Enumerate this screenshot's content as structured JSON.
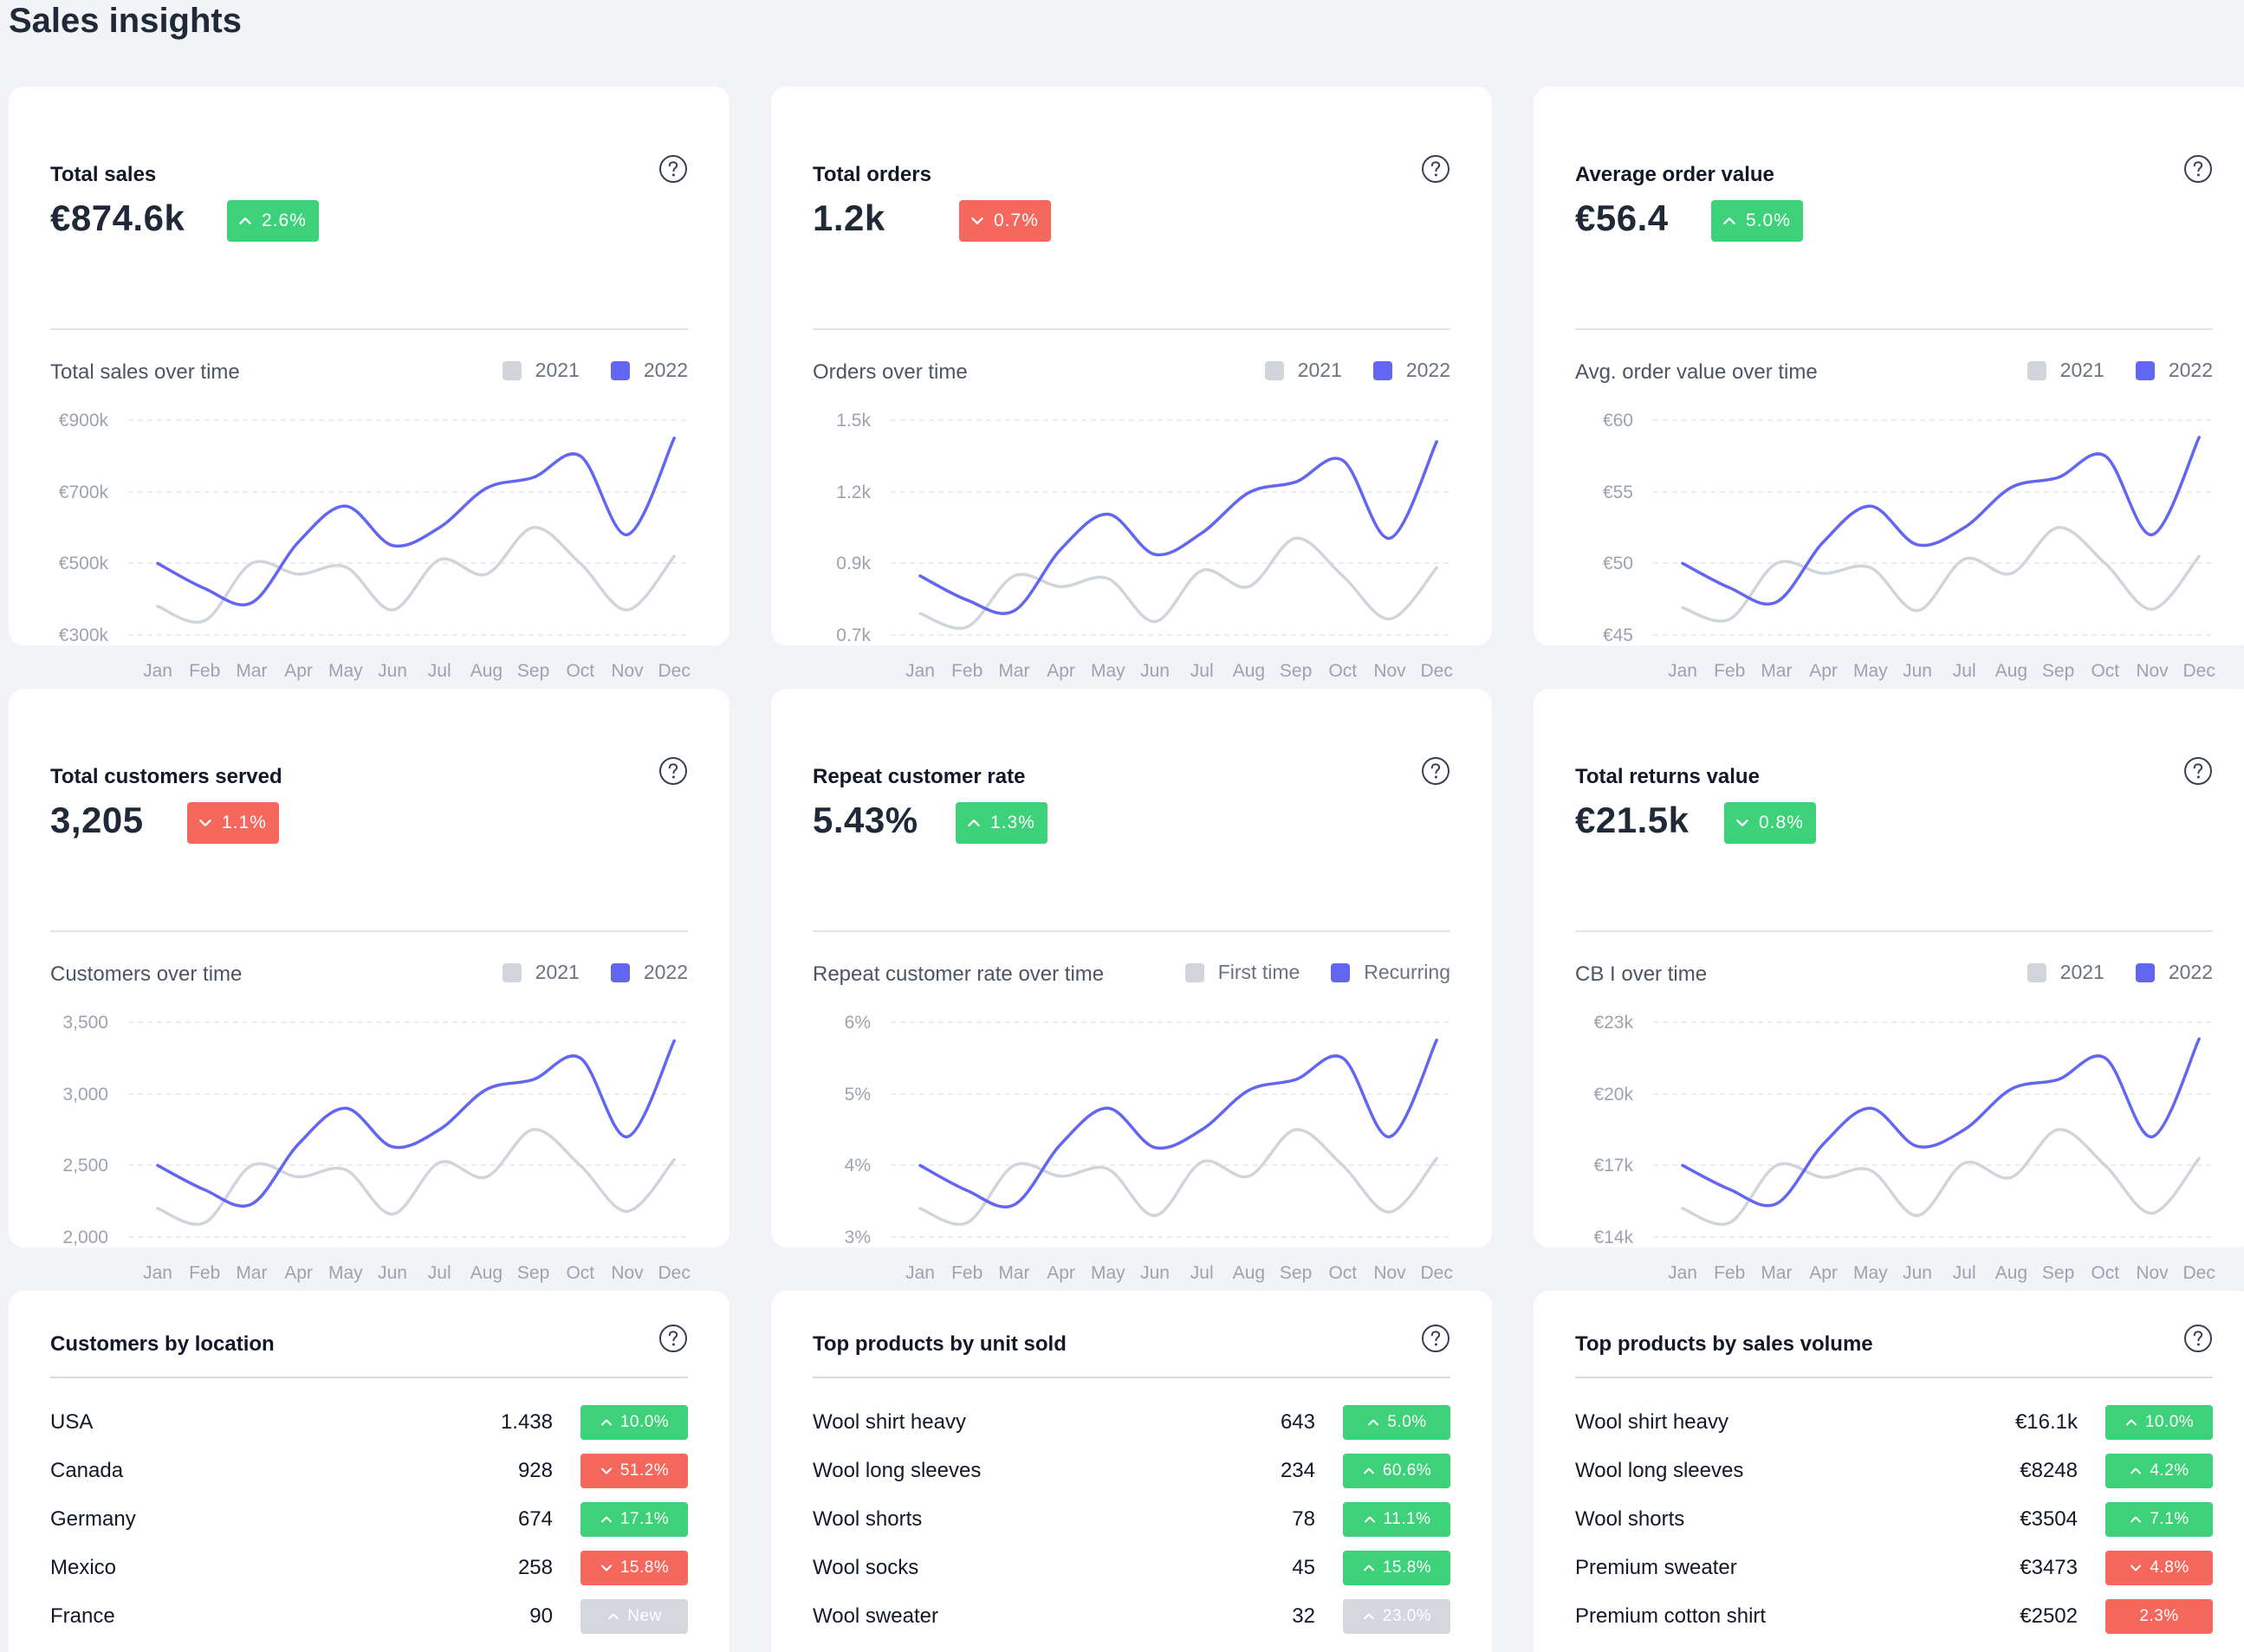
{
  "page": {
    "title": "Sales insights"
  },
  "colors": {
    "series_2021": "#d1d5db",
    "series_2022": "#6366f1",
    "up": "#3dd17a",
    "down": "#f5685e",
    "neutral": "#d4d7de"
  },
  "months": [
    "Jan",
    "Feb",
    "Mar",
    "Apr",
    "May",
    "Jun",
    "Jul",
    "Aug",
    "Sep",
    "Oct",
    "Nov",
    "Dec"
  ],
  "kpis": [
    {
      "title": "Total sales",
      "value": "€874.6k",
      "delta": "2.6%",
      "trend": "up",
      "chart_title": "Total sales over time",
      "legend": [
        "2021",
        "2022"
      ],
      "yticks": [
        "€900k",
        "€700k",
        "€500k",
        "€300k"
      ]
    },
    {
      "title": "Total orders",
      "value": "1.2k",
      "delta": "0.7%",
      "trend": "down",
      "chart_title": "Orders over time",
      "legend": [
        "2021",
        "2022"
      ],
      "yticks": [
        "1.5k",
        "1.2k",
        "0.9k",
        "0.7k"
      ]
    },
    {
      "title": "Average order value",
      "value": "€56.4",
      "delta": "5.0%",
      "trend": "up",
      "chart_title": "Avg. order value over time",
      "legend": [
        "2021",
        "2022"
      ],
      "yticks": [
        "€60",
        "€55",
        "€50",
        "€45"
      ]
    },
    {
      "title": "Total customers served",
      "value": "3,205",
      "delta": "1.1%",
      "trend": "down",
      "chart_title": "Customers over time",
      "legend": [
        "2021",
        "2022"
      ],
      "yticks": [
        "3,500",
        "3,000",
        "2,500",
        "2,000"
      ]
    },
    {
      "title": "Repeat customer rate",
      "value": "5.43%",
      "delta": "1.3%",
      "trend": "up",
      "chart_title": "Repeat customer rate over time",
      "legend": [
        "First time",
        "Recurring"
      ],
      "yticks": [
        "6%",
        "5%",
        "4%",
        "3%"
      ]
    },
    {
      "title": "Total returns value",
      "value": "€21.5k",
      "delta": "0.8%",
      "trend": "up-down",
      "chart_title": "CB I over time",
      "legend": [
        "2021",
        "2022"
      ],
      "yticks": [
        "€23k",
        "€20k",
        "€17k",
        "€14k"
      ]
    }
  ],
  "chart_data": [
    {
      "type": "line",
      "x": [
        "Jan",
        "Feb",
        "Mar",
        "Apr",
        "May",
        "Jun",
        "Jul",
        "Aug",
        "Sep",
        "Oct",
        "Nov",
        "Dec"
      ],
      "ylim": [
        300,
        900
      ],
      "series": [
        {
          "name": "2021",
          "values": [
            380,
            340,
            500,
            470,
            490,
            370,
            510,
            470,
            600,
            500,
            370,
            520
          ]
        },
        {
          "name": "2022",
          "values": [
            500,
            430,
            390,
            560,
            660,
            550,
            600,
            710,
            740,
            800,
            580,
            850
          ]
        }
      ]
    },
    {
      "type": "line",
      "x": [
        "Jan",
        "Feb",
        "Mar",
        "Apr",
        "May",
        "Jun",
        "Jul",
        "Aug",
        "Sep",
        "Oct",
        "Nov",
        "Dec"
      ],
      "ylim": [
        0.7,
        1.5
      ],
      "series": [
        {
          "name": "2021",
          "values": [
            0.78,
            0.73,
            0.92,
            0.88,
            0.91,
            0.75,
            0.94,
            0.88,
            1.06,
            0.92,
            0.76,
            0.95
          ]
        },
        {
          "name": "2022",
          "values": [
            0.92,
            0.83,
            0.79,
            1.02,
            1.15,
            1.0,
            1.08,
            1.23,
            1.27,
            1.35,
            1.06,
            1.42
          ]
        }
      ]
    },
    {
      "type": "line",
      "x": [
        "Jan",
        "Feb",
        "Mar",
        "Apr",
        "May",
        "Jun",
        "Jul",
        "Aug",
        "Sep",
        "Oct",
        "Nov",
        "Dec"
      ],
      "ylim": [
        45,
        60
      ],
      "series": [
        {
          "name": "2021",
          "values": [
            46.9,
            46.1,
            50.0,
            49.3,
            49.7,
            46.7,
            50.3,
            49.3,
            52.5,
            50.0,
            46.8,
            50.5
          ]
        },
        {
          "name": "2022",
          "values": [
            50.0,
            48.3,
            47.3,
            51.5,
            54.0,
            51.3,
            52.5,
            55.3,
            56.0,
            57.5,
            52.0,
            58.8
          ]
        }
      ]
    },
    {
      "type": "line",
      "x": [
        "Jan",
        "Feb",
        "Mar",
        "Apr",
        "May",
        "Jun",
        "Jul",
        "Aug",
        "Sep",
        "Oct",
        "Nov",
        "Dec"
      ],
      "ylim": [
        2000,
        3500
      ],
      "series": [
        {
          "name": "2021",
          "values": [
            2200,
            2100,
            2500,
            2420,
            2470,
            2160,
            2520,
            2420,
            2750,
            2500,
            2180,
            2540
          ]
        },
        {
          "name": "2022",
          "values": [
            2500,
            2330,
            2230,
            2650,
            2900,
            2630,
            2750,
            3030,
            3100,
            3250,
            2700,
            3370
          ]
        }
      ]
    },
    {
      "type": "line",
      "x": [
        "Jan",
        "Feb",
        "Mar",
        "Apr",
        "May",
        "Jun",
        "Jul",
        "Aug",
        "Sep",
        "Oct",
        "Nov",
        "Dec"
      ],
      "ylim": [
        3,
        6
      ],
      "series": [
        {
          "name": "First time",
          "values": [
            3.4,
            3.2,
            4.0,
            3.85,
            3.95,
            3.3,
            4.05,
            3.85,
            4.5,
            4.0,
            3.35,
            4.1
          ]
        },
        {
          "name": "Recurring",
          "values": [
            4.0,
            3.65,
            3.45,
            4.3,
            4.8,
            4.25,
            4.5,
            5.05,
            5.2,
            5.5,
            4.4,
            5.75
          ]
        }
      ]
    },
    {
      "type": "line",
      "x": [
        "Jan",
        "Feb",
        "Mar",
        "Apr",
        "May",
        "Jun",
        "Jul",
        "Aug",
        "Sep",
        "Oct",
        "Nov",
        "Dec"
      ],
      "ylim": [
        14,
        23
      ],
      "series": [
        {
          "name": "2021",
          "values": [
            15.2,
            14.6,
            17.0,
            16.5,
            16.8,
            14.9,
            17.1,
            16.5,
            18.5,
            17.0,
            15.0,
            17.3
          ]
        },
        {
          "name": "2022",
          "values": [
            17.0,
            16.0,
            15.4,
            17.9,
            19.4,
            17.8,
            18.5,
            20.2,
            20.6,
            21.5,
            18.2,
            22.3
          ]
        }
      ]
    }
  ],
  "lists": [
    {
      "title": "Customers by location",
      "rows": [
        {
          "label": "USA",
          "value": "1.438",
          "badge": "10.0%",
          "trend": "up"
        },
        {
          "label": "Canada",
          "value": "928",
          "badge": "51.2%",
          "trend": "down"
        },
        {
          "label": "Germany",
          "value": "674",
          "badge": "17.1%",
          "trend": "up"
        },
        {
          "label": "Mexico",
          "value": "258",
          "badge": "15.8%",
          "trend": "down"
        },
        {
          "label": "France",
          "value": "90",
          "badge": "New",
          "trend": "neutral"
        }
      ]
    },
    {
      "title": "Top products by unit sold",
      "rows": [
        {
          "label": "Wool shirt heavy",
          "value": "643",
          "badge": "5.0%",
          "trend": "up"
        },
        {
          "label": "Wool long sleeves",
          "value": "234",
          "badge": "60.6%",
          "trend": "up"
        },
        {
          "label": "Wool shorts",
          "value": "78",
          "badge": "11.1%",
          "trend": "up"
        },
        {
          "label": "Wool socks",
          "value": "45",
          "badge": "15.8%",
          "trend": "up"
        },
        {
          "label": "Wool sweater",
          "value": "32",
          "badge": "23.0%",
          "trend": "neutral"
        }
      ]
    },
    {
      "title": "Top products by sales volume",
      "rows": [
        {
          "label": "Wool shirt heavy",
          "value": "€16.1k",
          "badge": "10.0%",
          "trend": "up"
        },
        {
          "label": "Wool long sleeves",
          "value": "€8248",
          "badge": "4.2%",
          "trend": "up"
        },
        {
          "label": "Wool shorts",
          "value": "€3504",
          "badge": "7.1%",
          "trend": "up"
        },
        {
          "label": "Premium sweater",
          "value": "€3473",
          "badge": "4.8%",
          "trend": "down"
        },
        {
          "label": "Premium cotton shirt",
          "value": "€2502",
          "badge": "2.3%",
          "trend": "down-noicon"
        }
      ]
    }
  ]
}
